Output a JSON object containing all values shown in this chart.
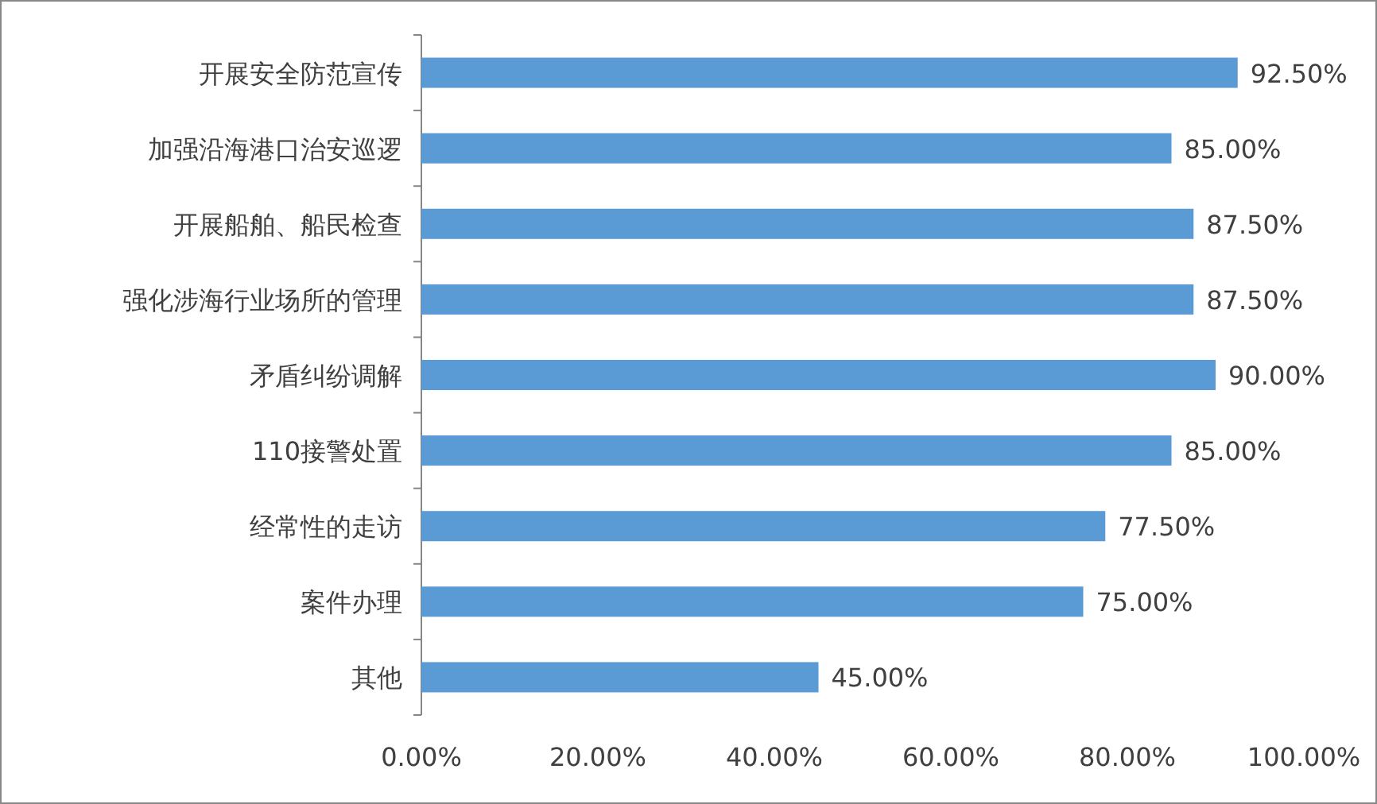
{
  "chart_data": {
    "type": "bar",
    "orientation": "horizontal",
    "categories": [
      "开展安全防范宣传",
      "加强沿海港口治安巡逻",
      "开展船舶、船民检查",
      "强化涉海行业场所的管理",
      "矛盾纠纷调解",
      "110接警处置",
      "经常性的走访",
      "案件办理",
      "其他"
    ],
    "values": [
      92.5,
      85,
      87.5,
      87.5,
      90,
      85,
      77.5,
      75,
      45
    ],
    "value_labels": [
      "92.50%",
      "85.00%",
      "87.50%",
      "87.50%",
      "90.00%",
      "85.00%",
      "77.50%",
      "75.00%",
      "45.00%"
    ],
    "color": "#5b9bd5",
    "xlim": [
      0,
      100
    ],
    "xticks": [
      {
        "value": 0,
        "label": "0.00%"
      },
      {
        "value": 20,
        "label": "20.00%"
      },
      {
        "value": 40,
        "label": "40.00%"
      },
      {
        "value": 60,
        "label": "60.00%"
      },
      {
        "value": 80,
        "label": "80.00%"
      },
      {
        "value": 100,
        "label": "100.00%"
      }
    ],
    "grid": false
  }
}
